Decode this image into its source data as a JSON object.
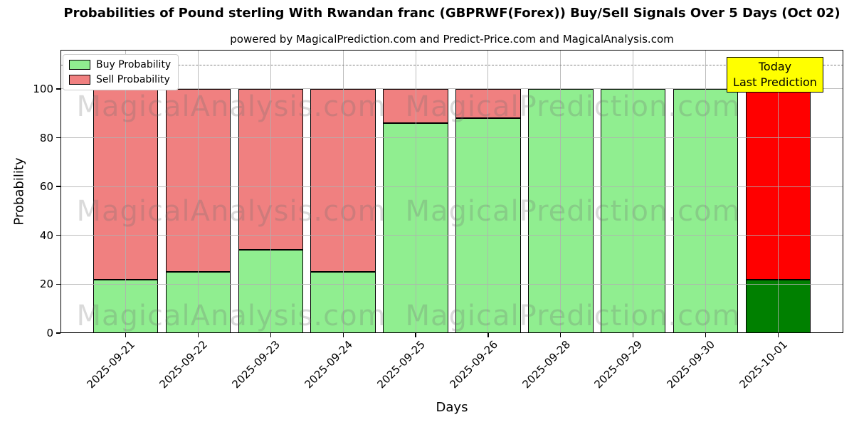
{
  "header": {
    "title": "Probabilities of Pound sterling With Rwandan franc (GBPRWF(Forex)) Buy/Sell Signals Over 5 Days (Oct 02)",
    "subtitle": "powered by MagicalPrediction.com and Predict-Price.com and MagicalAnalysis.com"
  },
  "legend": {
    "items": [
      {
        "label": "Buy Probability",
        "color": "#90ee90"
      },
      {
        "label": "Sell Probability",
        "color": "#f08080"
      }
    ]
  },
  "today_box": {
    "line1": "Today",
    "line2": "Last Prediction",
    "bg_color": "#ffff00"
  },
  "watermarks": {
    "left_text": "MagicalAnalysis.com",
    "right_text": "MagicalPrediction.com"
  },
  "chart_data": {
    "type": "bar",
    "stacked": true,
    "title": "Probabilities of Pound sterling With Rwandan franc (GBPRWF(Forex)) Buy/Sell Signals Over 5 Days (Oct 02)",
    "xlabel": "Days",
    "ylabel": "Probability",
    "categories": [
      "2025-09-21",
      "2025-09-22",
      "2025-09-23",
      "2025-09-24",
      "2025-09-25",
      "2025-09-26",
      "2025-09-28",
      "2025-09-29",
      "2025-09-30",
      "2025-10-01"
    ],
    "series": [
      {
        "name": "Buy Probability",
        "color": "#90ee90",
        "values": [
          22,
          25,
          34,
          25,
          86,
          88,
          100,
          100,
          100,
          22
        ]
      },
      {
        "name": "Sell Probability",
        "color": "#f08080",
        "values": [
          78,
          75,
          66,
          75,
          14,
          12,
          0,
          0,
          0,
          78
        ]
      }
    ],
    "today_index": 9,
    "today_colors": {
      "buy": "#008000",
      "sell": "#ff0000"
    },
    "ylim": [
      0,
      116
    ],
    "yticks": [
      0,
      20,
      40,
      60,
      80,
      100
    ],
    "grid": true,
    "threshold_line": {
      "value": 110,
      "style": "dashed",
      "color": "#7f7f7f"
    },
    "legend_position": "upper-left",
    "bar_edge_color": "#000000"
  }
}
